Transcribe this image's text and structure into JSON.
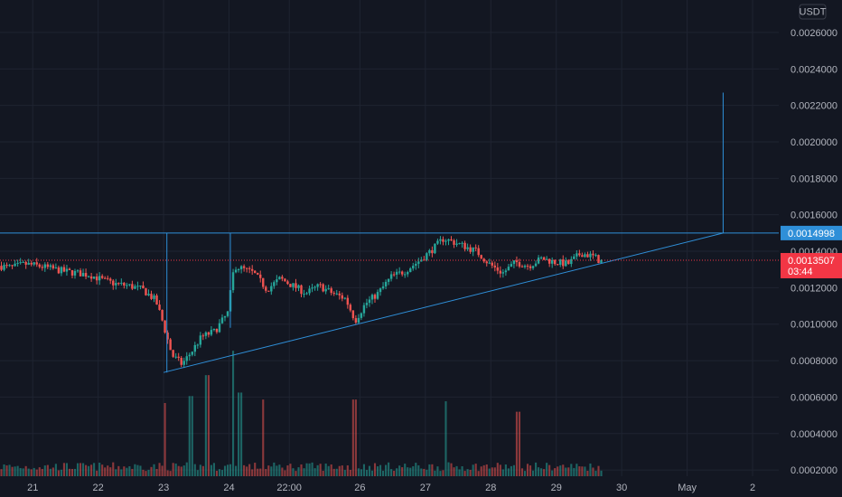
{
  "chart_data": {
    "type": "candlestick",
    "currency": "USDT",
    "colors": {
      "background": "#131722",
      "grid": "#1f2431",
      "up": "#26a69a",
      "down": "#ef5350",
      "drawing": "#2f8fd8",
      "current_price": "#f23645",
      "level_label": "#2f8fd8"
    },
    "y_axis": {
      "range": [
        0.000166,
        0.002778
      ],
      "ticks": [
        "0.0026000",
        "0.0024000",
        "0.0022000",
        "0.0020000",
        "0.0018000",
        "0.0016000",
        "0.0014000",
        "0.0012000",
        "0.0010000",
        "0.0008000",
        "0.0006000",
        "0.0004000",
        "0.0002000"
      ],
      "tick_values": [
        0.0026,
        0.0024,
        0.0022,
        0.002,
        0.0018,
        0.0016,
        0.0014,
        0.0012,
        0.001,
        0.0008,
        0.0006,
        0.0004,
        0.0002
      ]
    },
    "x_axis": {
      "range_days": [
        20.5,
        32.4
      ],
      "ticks": [
        {
          "label": "21",
          "day": 21.0
        },
        {
          "label": "22",
          "day": 22.0
        },
        {
          "label": "23",
          "day": 23.0
        },
        {
          "label": "24",
          "day": 24.0
        },
        {
          "label": "22:00",
          "day": 24.92
        },
        {
          "label": "26",
          "day": 26.0
        },
        {
          "label": "27",
          "day": 27.0
        },
        {
          "label": "28",
          "day": 28.0
        },
        {
          "label": "29",
          "day": 29.0
        },
        {
          "label": "30",
          "day": 30.0
        },
        {
          "label": "May",
          "day": 31.0
        },
        {
          "label": "2",
          "day": 32.0
        }
      ]
    },
    "price_path": [
      [
        20.5,
        0.00132
      ],
      [
        20.7,
        0.00131
      ],
      [
        20.9,
        0.00133
      ],
      [
        21.1,
        0.00132
      ],
      [
        21.3,
        0.001305
      ],
      [
        21.5,
        0.00129
      ],
      [
        21.7,
        0.00128
      ],
      [
        21.9,
        0.00127
      ],
      [
        22.1,
        0.00124
      ],
      [
        22.3,
        0.00122
      ],
      [
        22.5,
        0.00121
      ],
      [
        22.7,
        0.00119
      ],
      [
        22.9,
        0.00113
      ],
      [
        23.0,
        0.00102
      ],
      [
        23.15,
        0.00083
      ],
      [
        23.3,
        0.00078
      ],
      [
        23.45,
        0.00085
      ],
      [
        23.6,
        0.00093
      ],
      [
        23.8,
        0.00096
      ],
      [
        24.0,
        0.00106
      ],
      [
        24.1,
        0.00132
      ],
      [
        24.25,
        0.0013
      ],
      [
        24.4,
        0.00128
      ],
      [
        24.6,
        0.00119
      ],
      [
        24.8,
        0.00125
      ],
      [
        25.0,
        0.00121
      ],
      [
        25.2,
        0.00117
      ],
      [
        25.4,
        0.00121
      ],
      [
        25.6,
        0.00117
      ],
      [
        25.8,
        0.00114
      ],
      [
        25.95,
        0.00102
      ],
      [
        26.1,
        0.00111
      ],
      [
        26.3,
        0.00117
      ],
      [
        26.5,
        0.00126
      ],
      [
        26.7,
        0.00129
      ],
      [
        26.9,
        0.00134
      ],
      [
        27.1,
        0.0014
      ],
      [
        27.3,
        0.00147
      ],
      [
        27.45,
        0.00145
      ],
      [
        27.6,
        0.00143
      ],
      [
        27.8,
        0.0014
      ],
      [
        28.0,
        0.00133
      ],
      [
        28.2,
        0.00128
      ],
      [
        28.4,
        0.00134
      ],
      [
        28.6,
        0.00132
      ],
      [
        28.8,
        0.00136
      ],
      [
        29.0,
        0.00134
      ],
      [
        29.2,
        0.00133
      ],
      [
        29.4,
        0.00139
      ],
      [
        29.6,
        0.00137
      ],
      [
        29.67,
        0.001351
      ]
    ],
    "volume": {
      "max": 0.0007,
      "spikes": [
        [
          23.0,
          0.00042
        ],
        [
          23.4,
          0.00046
        ],
        [
          23.65,
          0.00058
        ],
        [
          24.05,
          0.00072
        ],
        [
          24.15,
          0.00048
        ],
        [
          24.5,
          0.00044
        ],
        [
          25.9,
          0.00044
        ],
        [
          27.3,
          0.00043
        ],
        [
          28.4,
          0.00037
        ]
      ]
    },
    "current_price": {
      "value": 0.0013507,
      "label": "0.0013507",
      "countdown": "03:44",
      "day": 29.67
    },
    "annotations": {
      "resistance": {
        "value": 0.0014998,
        "label": "0.0014998",
        "from_day": 20.5,
        "to_day": 31.55
      },
      "support_trendline": {
        "from": [
          23.0,
          0.000735
        ],
        "to": [
          31.55,
          0.0014998
        ]
      },
      "vertical_markers": [
        {
          "day": 23.05,
          "from": 0.000735,
          "to": 0.0014998
        },
        {
          "day": 24.02,
          "from": 0.00098,
          "to": 0.0014998
        },
        {
          "day": 31.55,
          "from": 0.0014998,
          "to": 0.00227
        }
      ]
    }
  }
}
